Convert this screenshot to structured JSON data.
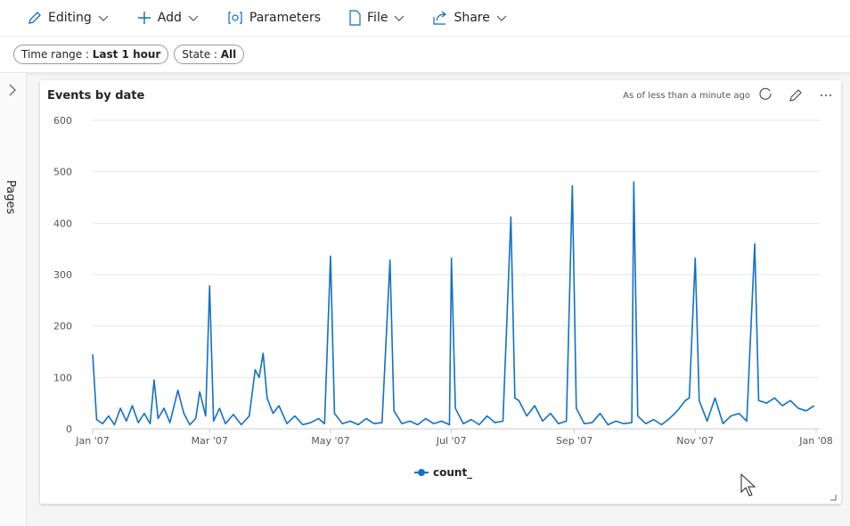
{
  "toolbar": {
    "items": [
      "Editing",
      "Add",
      "Parameters",
      "File",
      "Share"
    ]
  },
  "filters": [
    {
      "label": "Time range : ",
      "value": "Last 1 hour"
    },
    {
      "label": "State : ",
      "value": "All"
    }
  ],
  "sidebar": {
    "label": "Pages"
  },
  "tile": {
    "title": "Events by date",
    "status": "As of less than a minute ago"
  },
  "chart_data": {
    "type": "line",
    "x": [
      "2007-01-01",
      "2007-01-03",
      "2007-01-06",
      "2007-01-09",
      "2007-01-12",
      "2007-01-15",
      "2007-01-18",
      "2007-01-21",
      "2007-01-24",
      "2007-01-27",
      "2007-01-30",
      "2007-02-01",
      "2007-02-03",
      "2007-02-06",
      "2007-02-09",
      "2007-02-13",
      "2007-02-16",
      "2007-02-19",
      "2007-02-22",
      "2007-02-24",
      "2007-02-27",
      "2007-03-01",
      "2007-03-03",
      "2007-03-06",
      "2007-03-09",
      "2007-03-13",
      "2007-03-17",
      "2007-03-21",
      "2007-03-24",
      "2007-03-26",
      "2007-03-28",
      "2007-03-30",
      "2007-04-02",
      "2007-04-05",
      "2007-04-09",
      "2007-04-13",
      "2007-04-17",
      "2007-04-21",
      "2007-04-25",
      "2007-04-28",
      "2007-05-01",
      "2007-05-03",
      "2007-05-07",
      "2007-05-11",
      "2007-05-15",
      "2007-05-19",
      "2007-05-23",
      "2007-05-27",
      "2007-05-31",
      "2007-06-02",
      "2007-06-06",
      "2007-06-10",
      "2007-06-14",
      "2007-06-18",
      "2007-06-22",
      "2007-06-26",
      "2007-06-30",
      "2007-07-01",
      "2007-07-03",
      "2007-07-07",
      "2007-07-11",
      "2007-07-15",
      "2007-07-19",
      "2007-07-23",
      "2007-07-27",
      "2007-07-31",
      "2007-08-02",
      "2007-08-04",
      "2007-08-08",
      "2007-08-12",
      "2007-08-16",
      "2007-08-20",
      "2007-08-24",
      "2007-08-28",
      "2007-08-31",
      "2007-09-02",
      "2007-09-06",
      "2007-09-10",
      "2007-09-14",
      "2007-09-18",
      "2007-09-22",
      "2007-09-26",
      "2007-09-30",
      "2007-10-01",
      "2007-10-03",
      "2007-10-07",
      "2007-10-11",
      "2007-10-15",
      "2007-10-19",
      "2007-10-23",
      "2007-10-27",
      "2007-10-29",
      "2007-11-01",
      "2007-11-03",
      "2007-11-07",
      "2007-11-11",
      "2007-11-15",
      "2007-11-19",
      "2007-11-23",
      "2007-11-27",
      "2007-12-01",
      "2007-12-03",
      "2007-12-07",
      "2007-12-11",
      "2007-12-15",
      "2007-12-19",
      "2007-12-23",
      "2007-12-27",
      "2007-12-31"
    ],
    "series": [
      {
        "name": "count_",
        "color": "#1170c8",
        "values": [
          145,
          18,
          10,
          25,
          8,
          40,
          15,
          45,
          12,
          30,
          10,
          95,
          20,
          40,
          12,
          75,
          30,
          8,
          20,
          72,
          25,
          278,
          15,
          40,
          10,
          28,
          8,
          25,
          115,
          100,
          147,
          60,
          30,
          45,
          10,
          25,
          8,
          12,
          20,
          10,
          336,
          30,
          10,
          15,
          8,
          20,
          10,
          12,
          328,
          35,
          10,
          15,
          8,
          20,
          10,
          15,
          8,
          332,
          40,
          10,
          18,
          8,
          25,
          12,
          15,
          412,
          60,
          55,
          25,
          45,
          15,
          30,
          10,
          15,
          473,
          40,
          10,
          12,
          30,
          8,
          15,
          10,
          12,
          480,
          25,
          10,
          18,
          8,
          20,
          35,
          55,
          60,
          332,
          55,
          15,
          60,
          10,
          25,
          30,
          15,
          360,
          55,
          50,
          60,
          45,
          55,
          40,
          35,
          45
        ]
      }
    ],
    "xlim": [
      "2007-01-01",
      "2008-01-01"
    ],
    "xticks": [
      {
        "value": "2007-01-01",
        "label": "Jan '07"
      },
      {
        "value": "2007-03-01",
        "label": "Mar '07"
      },
      {
        "value": "2007-05-01",
        "label": "May '07"
      },
      {
        "value": "2007-07-01",
        "label": "Jul '07"
      },
      {
        "value": "2007-09-01",
        "label": "Sep '07"
      },
      {
        "value": "2007-11-01",
        "label": "Nov '07"
      },
      {
        "value": "2008-01-01",
        "label": "Jan '08"
      }
    ],
    "ylim": [
      0,
      600
    ],
    "yticks": [
      0,
      100,
      200,
      300,
      400,
      500,
      600
    ],
    "grid": true
  }
}
